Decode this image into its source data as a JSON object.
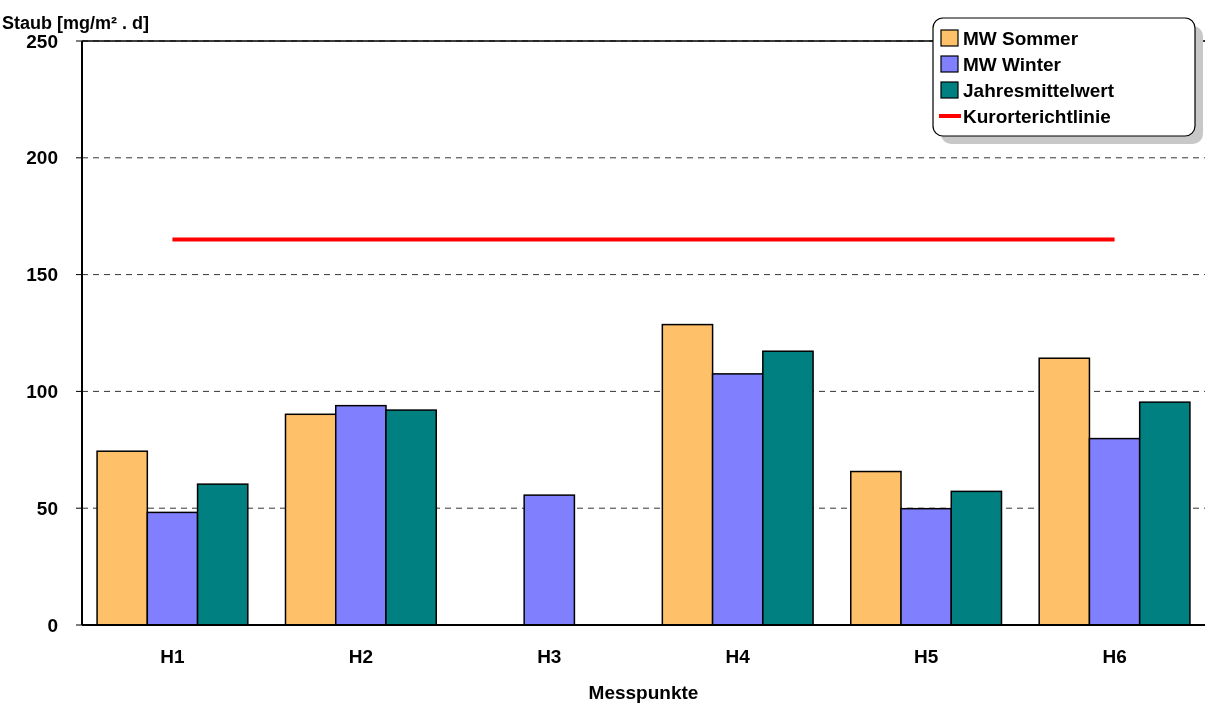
{
  "chart_data": {
    "type": "bar",
    "ylabel": "Staub [mg/m² . d]",
    "xlabel": "Messpunkte",
    "categories": [
      "H1",
      "H2",
      "H3",
      "H4",
      "H5",
      "H6"
    ],
    "series": [
      {
        "name": "MW Sommer",
        "color": "#ffc06a",
        "values": [
          74.4,
          90.2,
          null,
          128.6,
          65.7,
          114.2
        ]
      },
      {
        "name": "MW Winter",
        "color": "#8080ff",
        "values": [
          48.2,
          93.9,
          55.6,
          107.5,
          49.8,
          79.8
        ]
      },
      {
        "name": "Jahresmittelwert",
        "color": "#008080",
        "values": [
          60.3,
          92.0,
          null,
          117.2,
          57.2,
          95.4
        ]
      }
    ],
    "ref_lines": [
      {
        "axis": "y",
        "value": 165,
        "label": "Kurorterichtlinie",
        "color": "#ff0000"
      }
    ],
    "ylim": [
      0,
      250
    ],
    "yticks": [
      0,
      50,
      100,
      150,
      200,
      250
    ],
    "grid": "y",
    "legend": "top right"
  }
}
